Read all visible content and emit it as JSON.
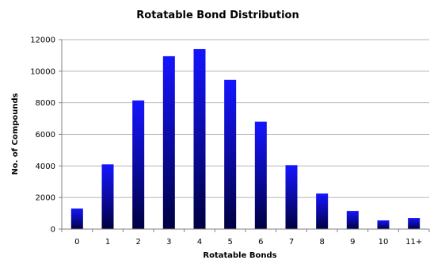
{
  "chart_data": {
    "type": "bar",
    "title": "Rotatable Bond Distribution",
    "xlabel": "Rotatable Bonds",
    "ylabel": "No. of Compounds",
    "categories": [
      "0",
      "1",
      "2",
      "3",
      "4",
      "5",
      "6",
      "7",
      "8",
      "9",
      "10",
      "11+"
    ],
    "values": [
      1300,
      4100,
      8150,
      10950,
      11400,
      9450,
      6800,
      4050,
      2250,
      1150,
      550,
      700
    ],
    "ylim": [
      0,
      12000
    ],
    "yticks": [
      0,
      2000,
      4000,
      6000,
      8000,
      10000,
      12000
    ],
    "ytick_labels": [
      "0",
      "2000",
      "4000",
      "6000",
      "8000",
      "10000",
      "12000"
    ],
    "grid": true,
    "legend": "none",
    "colors": {
      "bar_top": "#1515ff",
      "bar_bottom": "#000040",
      "gridline": "#b4b4b4",
      "axis": "#808080"
    }
  }
}
